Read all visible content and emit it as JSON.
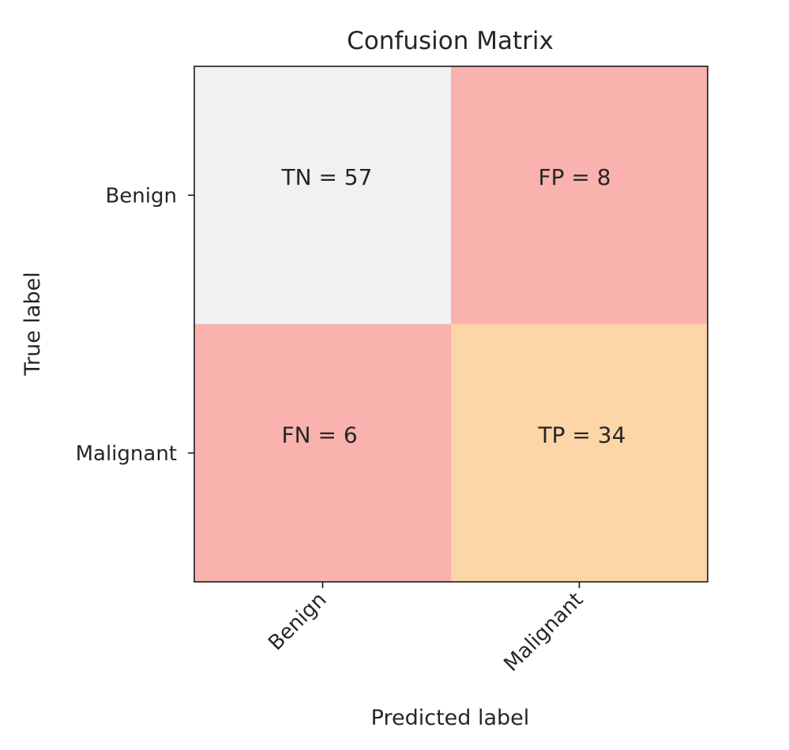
{
  "chart_data": {
    "type": "heatmap",
    "title": "Confusion Matrix",
    "xlabel": "Predicted label",
    "ylabel": "True label",
    "x_categories": [
      "Benign",
      "Malignant"
    ],
    "y_categories": [
      "Benign",
      "Malignant"
    ],
    "cells": [
      {
        "row": 0,
        "col": 0,
        "key": "TN",
        "label": "TN = 57",
        "value": 57,
        "color": "#f0f1f3"
      },
      {
        "row": 0,
        "col": 1,
        "key": "FP",
        "label": "FP = 8",
        "value": 8,
        "color": "#f9b2ad"
      },
      {
        "row": 1,
        "col": 0,
        "key": "FN",
        "label": "FN = 6",
        "value": 6,
        "color": "#f9b2ad"
      },
      {
        "row": 1,
        "col": 1,
        "key": "TP",
        "label": "TP = 34",
        "value": 34,
        "color": "#fcd6a6"
      }
    ],
    "grid": false,
    "legend": "none"
  }
}
